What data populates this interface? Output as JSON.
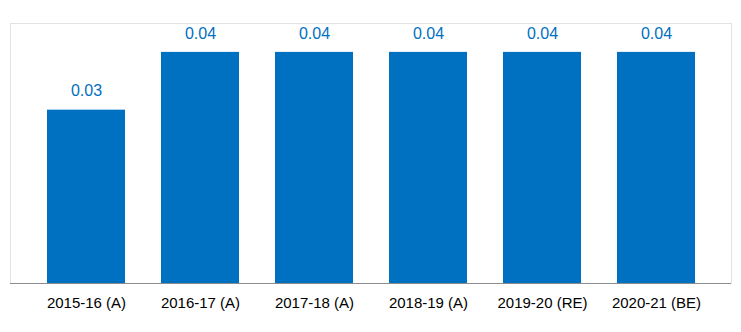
{
  "chart_data": {
    "type": "bar",
    "categories": [
      "2015-16 (A)",
      "2016-17 (A)",
      "2017-18 (A)",
      "2018-19 (A)",
      "2019-20 (RE)",
      "2020-21 (BE)"
    ],
    "values": [
      0.03,
      0.04,
      0.04,
      0.04,
      0.04,
      0.04
    ],
    "color": "#0070C0",
    "ylim": [
      0,
      0.045
    ],
    "yticks": [],
    "grid": false,
    "data_labels": true,
    "tick_labels": "x"
  }
}
